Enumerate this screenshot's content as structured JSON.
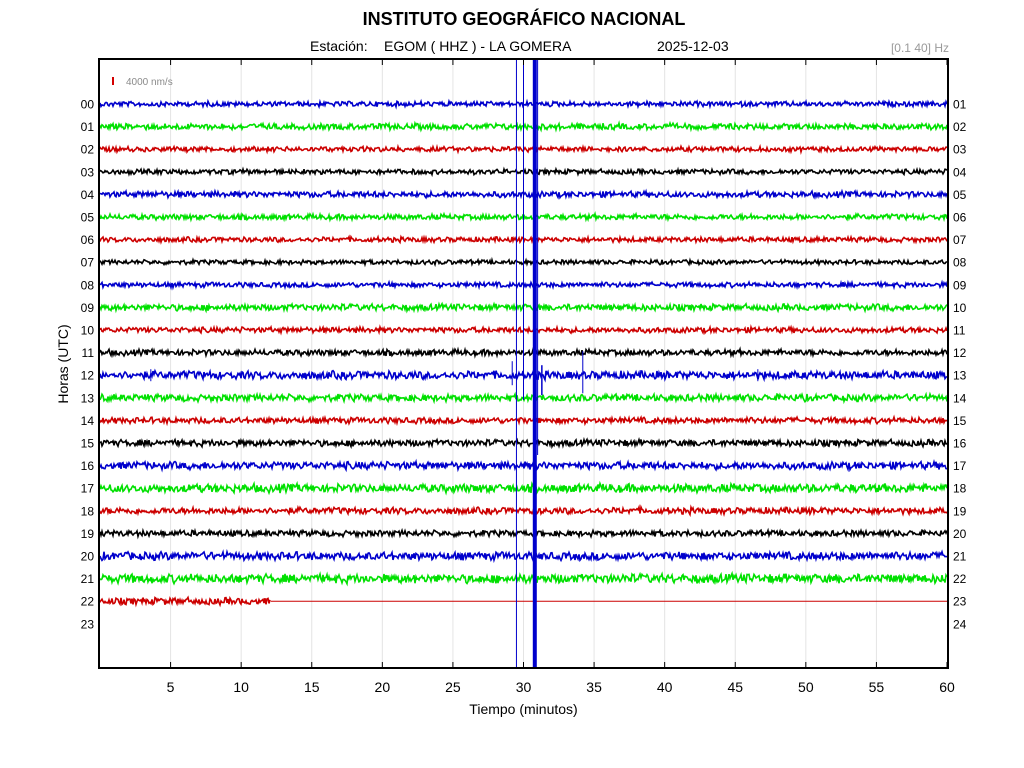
{
  "header": {
    "institution": "INSTITUTO GEOGRÁFICO NACIONAL",
    "station_label": "Estación:",
    "station": "EGOM ( HHZ ) - LA GOMERA",
    "date": "2025-12-03",
    "filter": "[0.1 40] Hz"
  },
  "colors": {
    "blue": "#0000cc",
    "green": "#00e000",
    "red": "#cc0000",
    "black": "#000000",
    "grid": "#e4e4e4",
    "scale_bar": "#d40000"
  },
  "chart_data": {
    "type": "line",
    "title": "INSTITUTO GEOGRÁFICO NACIONAL",
    "xlabel": "Tiempo (minutos)",
    "ylabel": "Horas (UTC)",
    "xlim": [
      0,
      60
    ],
    "x_ticks": [
      5,
      10,
      15,
      20,
      25,
      30,
      35,
      40,
      45,
      50,
      55,
      60
    ],
    "y_ticks_left": [
      "00",
      "01",
      "02",
      "03",
      "04",
      "05",
      "06",
      "07",
      "08",
      "09",
      "10",
      "11",
      "12",
      "13",
      "14",
      "15",
      "16",
      "17",
      "18",
      "19",
      "20",
      "21",
      "22",
      "23"
    ],
    "y_ticks_right": [
      "01",
      "02",
      "03",
      "04",
      "05",
      "06",
      "07",
      "08",
      "09",
      "10",
      "11",
      "12",
      "13",
      "14",
      "15",
      "16",
      "17",
      "18",
      "19",
      "20",
      "21",
      "22",
      "23",
      "24"
    ],
    "grid": true,
    "scale_label": "4000 nm/s",
    "color_cycle": [
      "blue",
      "green",
      "red",
      "black"
    ],
    "traces": [
      {
        "hour": "00",
        "color": "blue",
        "amplitude": 1.0,
        "end_minute": 60
      },
      {
        "hour": "01",
        "color": "green",
        "amplitude": 1.2,
        "end_minute": 60
      },
      {
        "hour": "02",
        "color": "red",
        "amplitude": 1.0,
        "end_minute": 60
      },
      {
        "hour": "03",
        "color": "black",
        "amplitude": 1.0,
        "end_minute": 60
      },
      {
        "hour": "04",
        "color": "blue",
        "amplitude": 1.2,
        "end_minute": 60
      },
      {
        "hour": "05",
        "color": "green",
        "amplitude": 1.1,
        "end_minute": 60
      },
      {
        "hour": "06",
        "color": "red",
        "amplitude": 1.0,
        "end_minute": 60
      },
      {
        "hour": "07",
        "color": "black",
        "amplitude": 0.9,
        "end_minute": 60
      },
      {
        "hour": "08",
        "color": "blue",
        "amplitude": 1.0,
        "end_minute": 60
      },
      {
        "hour": "09",
        "color": "green",
        "amplitude": 1.3,
        "end_minute": 60
      },
      {
        "hour": "10",
        "color": "red",
        "amplitude": 1.1,
        "end_minute": 60
      },
      {
        "hour": "11",
        "color": "black",
        "amplitude": 1.2,
        "end_minute": 60
      },
      {
        "hour": "12",
        "color": "blue",
        "amplitude": 1.6,
        "end_minute": 60
      },
      {
        "hour": "13",
        "color": "green",
        "amplitude": 1.4,
        "end_minute": 60
      },
      {
        "hour": "14",
        "color": "red",
        "amplitude": 1.2,
        "end_minute": 60
      },
      {
        "hour": "15",
        "color": "black",
        "amplitude": 1.3,
        "end_minute": 60
      },
      {
        "hour": "16",
        "color": "blue",
        "amplitude": 1.5,
        "end_minute": 60
      },
      {
        "hour": "17",
        "color": "green",
        "amplitude": 1.7,
        "end_minute": 60
      },
      {
        "hour": "18",
        "color": "red",
        "amplitude": 1.3,
        "end_minute": 60
      },
      {
        "hour": "19",
        "color": "black",
        "amplitude": 1.2,
        "end_minute": 60
      },
      {
        "hour": "20",
        "color": "blue",
        "amplitude": 1.6,
        "end_minute": 60
      },
      {
        "hour": "21",
        "color": "green",
        "amplitude": 1.8,
        "end_minute": 60
      },
      {
        "hour": "22",
        "color": "red",
        "amplitude": 1.4,
        "end_minute": 12.1,
        "flat_to_minute": 60
      },
      {
        "hour": "23",
        "color": "black",
        "amplitude": 0,
        "end_minute": 0
      }
    ],
    "events": [
      {
        "hour": "12",
        "minute": 30.8,
        "note": "large event, saturated trace spanning many hours"
      },
      {
        "hour": "12",
        "minute": 29.5,
        "note": "spike"
      },
      {
        "hour": "12",
        "minute": 34.2,
        "note": "spike"
      }
    ]
  }
}
